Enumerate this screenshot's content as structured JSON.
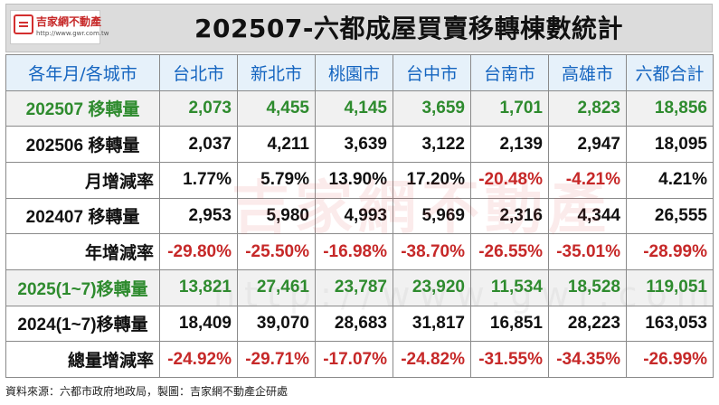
{
  "logo": {
    "name": "吉家網不動產",
    "url": "http://www.gwr.com.tw"
  },
  "title": "202507-六都成屋買賣移轉棟數統計",
  "watermark": {
    "text": "吉家網不動產",
    "url": "http://www.gwr.com.tw"
  },
  "table": {
    "columns": [
      "各年月/各城市",
      "台北市",
      "新北市",
      "桃園市",
      "台中市",
      "台南市",
      "高雄市",
      "六都合計"
    ],
    "rows": [
      {
        "label": "202507 移轉量",
        "values": [
          "2,073",
          "4,455",
          "4,145",
          "3,659",
          "1,701",
          "2,823",
          "18,856"
        ]
      },
      {
        "label": "202506 移轉量",
        "values": [
          "2,037",
          "4,211",
          "3,639",
          "3,122",
          "2,139",
          "2,947",
          "18,095"
        ]
      },
      {
        "label": "月增減率",
        "values": [
          "1.77%",
          "5.79%",
          "13.90%",
          "17.20%",
          "-20.48%",
          "-4.21%",
          "4.21%"
        ]
      },
      {
        "label": "202407 移轉量",
        "values": [
          "2,953",
          "5,980",
          "4,993",
          "5,969",
          "2,316",
          "4,344",
          "26,555"
        ]
      },
      {
        "label": "年增減率",
        "values": [
          "-29.80%",
          "-25.50%",
          "-16.98%",
          "-38.70%",
          "-26.55%",
          "-35.01%",
          "-28.99%"
        ]
      },
      {
        "label": "2025(1~7)移轉量",
        "values": [
          "13,821",
          "27,461",
          "23,787",
          "23,920",
          "11,534",
          "18,528",
          "119,051"
        ]
      },
      {
        "label": "2024(1~7)移轉量",
        "values": [
          "18,409",
          "39,070",
          "28,683",
          "31,817",
          "16,851",
          "28,223",
          "163,053"
        ]
      },
      {
        "label": "總量增減率",
        "values": [
          "-24.92%",
          "-29.71%",
          "-17.07%",
          "-24.82%",
          "-31.55%",
          "-34.35%",
          "-26.99%"
        ]
      }
    ]
  },
  "colors": {
    "green": "#2e8b2e",
    "red": "#c62828",
    "header_blue": "#1565c0",
    "header_bg": "#e6f1fa"
  },
  "footer": "資料來源：六都市政府地政局，製圖：吉家網不動產企研處"
}
